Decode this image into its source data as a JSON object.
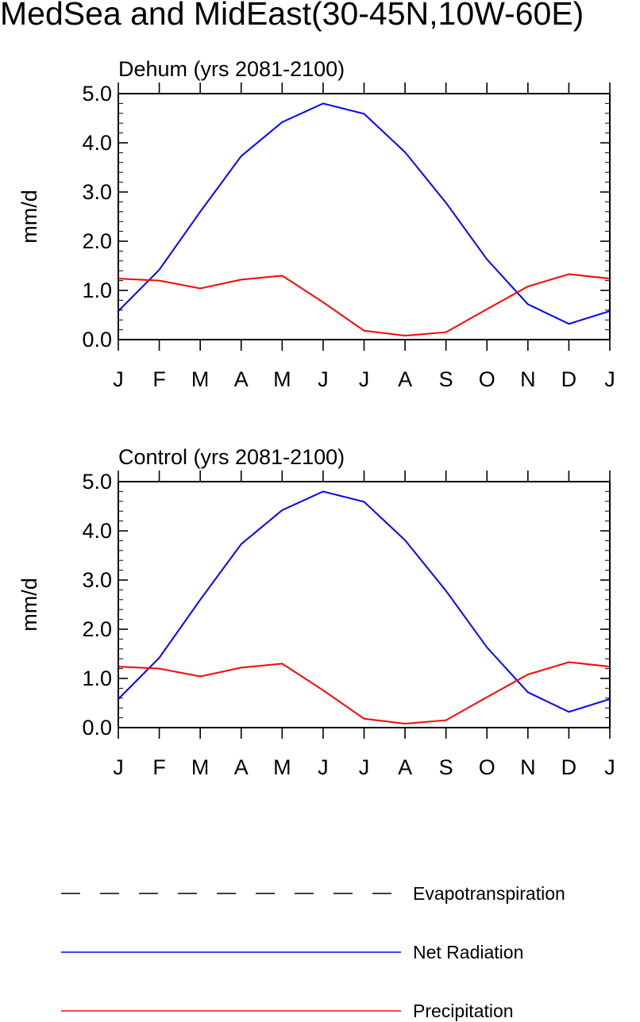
{
  "page_title": "MedSea and MidEast(30-45N,10W-60E)",
  "colors": {
    "net_radiation": "#0000ff",
    "precipitation": "#ff0000",
    "evapotranspiration": "#000000"
  },
  "legend": [
    {
      "label": "Evapotranspiration",
      "style": "dashed",
      "color": "#000000"
    },
    {
      "label": "Net Radiation",
      "style": "solid",
      "color": "#0000ff"
    },
    {
      "label": "Precipitation",
      "style": "solid",
      "color": "#ff0000"
    }
  ],
  "chart_data": [
    {
      "type": "line",
      "title": "Dehum (yrs 2081-2100)",
      "xlabel": "",
      "ylabel": "mm/d",
      "ylim": [
        0,
        5
      ],
      "yticks": [
        "0.0",
        "1.0",
        "2.0",
        "3.0",
        "4.0",
        "5.0"
      ],
      "categories": [
        "J",
        "F",
        "M",
        "A",
        "M",
        "J",
        "J",
        "A",
        "S",
        "O",
        "N",
        "D",
        "J"
      ],
      "series": [
        {
          "name": "Net Radiation",
          "color": "#0000ff",
          "values": [
            0.58,
            1.42,
            2.6,
            3.73,
            4.42,
            4.8,
            4.59,
            3.81,
            2.78,
            1.63,
            0.72,
            0.32,
            0.58
          ]
        },
        {
          "name": "Precipitation",
          "color": "#ff0000",
          "values": [
            1.24,
            1.2,
            1.04,
            1.22,
            1.3,
            0.76,
            0.18,
            0.08,
            0.15,
            0.62,
            1.08,
            1.33,
            1.24
          ]
        }
      ]
    },
    {
      "type": "line",
      "title": "Control (yrs 2081-2100)",
      "xlabel": "",
      "ylabel": "mm/d",
      "ylim": [
        0,
        5
      ],
      "yticks": [
        "0.0",
        "1.0",
        "2.0",
        "3.0",
        "4.0",
        "5.0"
      ],
      "categories": [
        "J",
        "F",
        "M",
        "A",
        "M",
        "J",
        "J",
        "A",
        "S",
        "O",
        "N",
        "D",
        "J"
      ],
      "series": [
        {
          "name": "Net Radiation",
          "color": "#0000ff",
          "values": [
            0.58,
            1.42,
            2.6,
            3.73,
            4.42,
            4.8,
            4.59,
            3.81,
            2.78,
            1.63,
            0.72,
            0.32,
            0.58
          ]
        },
        {
          "name": "Precipitation",
          "color": "#ff0000",
          "values": [
            1.24,
            1.2,
            1.04,
            1.22,
            1.3,
            0.76,
            0.18,
            0.08,
            0.15,
            0.62,
            1.08,
            1.33,
            1.24
          ]
        }
      ]
    }
  ]
}
